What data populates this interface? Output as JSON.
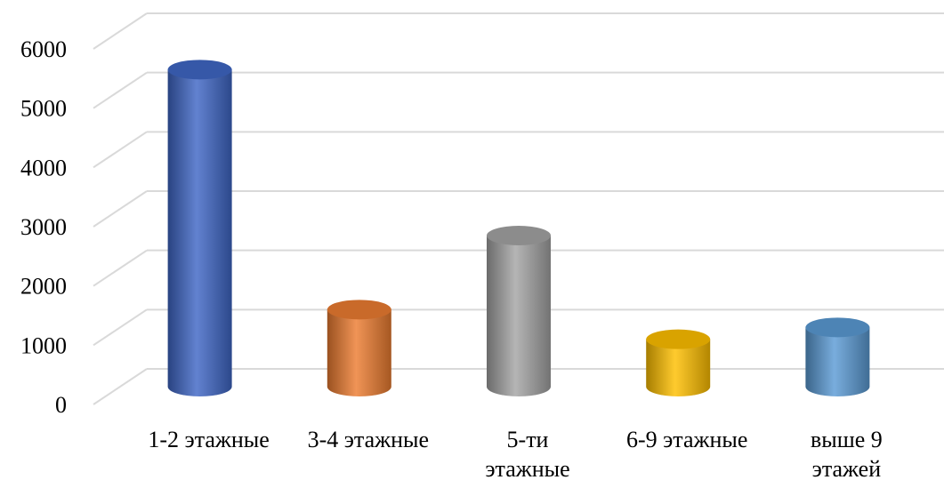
{
  "chart_data": {
    "type": "bar",
    "style": "3d-cylinder",
    "categories": [
      [
        "1-2 этажные"
      ],
      [
        "3-4 этажные"
      ],
      [
        "5-ти",
        "этажные"
      ],
      [
        "6-9 этажные"
      ],
      [
        "выше 9",
        "этажей"
      ]
    ],
    "values": [
      5350,
      1300,
      2550,
      800,
      1000
    ],
    "colors": [
      "#3F67C6",
      "#ED7D31",
      "#A5A5A5",
      "#FFC000",
      "#5B9BD5"
    ],
    "ylim": [
      0,
      6000
    ],
    "yticks": [
      "0",
      "1000",
      "2000",
      "3000",
      "4000",
      "5000",
      "6000"
    ],
    "grid": true,
    "legend": "none"
  }
}
